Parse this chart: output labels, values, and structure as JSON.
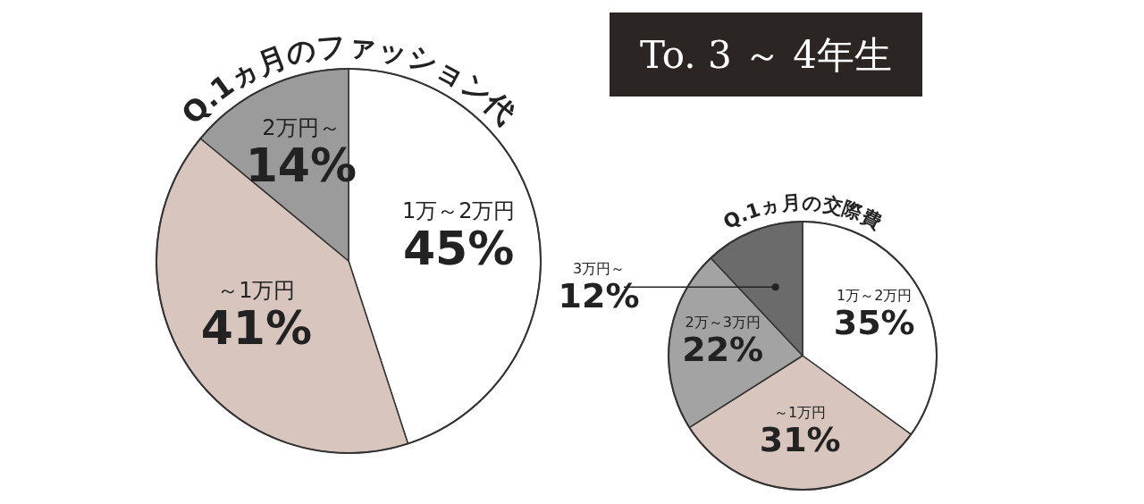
{
  "chart_data": [
    {
      "type": "pie",
      "title": "Q.1ヵ月のファッション代",
      "categories": [
        "1万～2万円",
        "～1万円",
        "2万円～"
      ],
      "values": [
        45,
        41,
        14
      ],
      "value_labels": [
        "45%",
        "41%",
        "14%"
      ],
      "colors": [
        "#ffffff",
        "#d7c5be",
        "#9b9b9b"
      ]
    },
    {
      "type": "other",
      "title": "To. 3 ～ 4年生"
    },
    {
      "type": "pie",
      "title": "Q.1ヵ月の交際費",
      "categories": [
        "1万～2万円",
        "～1万円",
        "2万～3万円",
        "3万円～"
      ],
      "values": [
        35,
        31,
        22,
        12
      ],
      "value_labels": [
        "35%",
        "31%",
        "22%",
        "12%"
      ],
      "colors": [
        "#ffffff",
        "#d7c5be",
        "#a3a3a3",
        "#6b6b6b"
      ]
    }
  ]
}
